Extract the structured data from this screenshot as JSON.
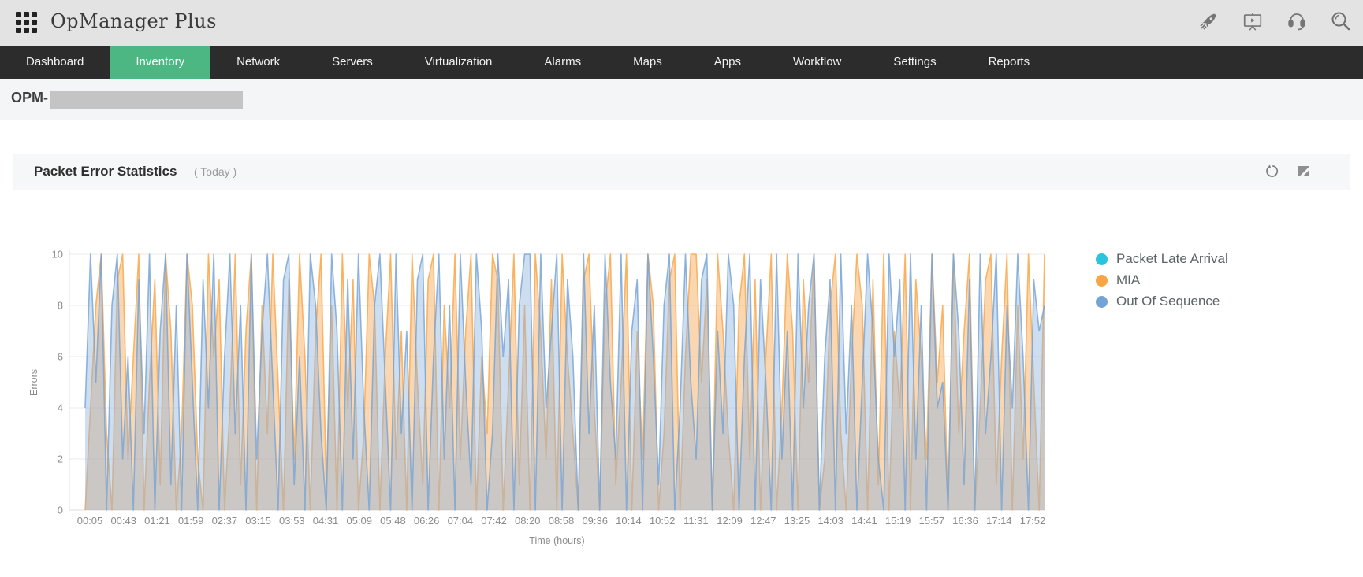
{
  "header": {
    "logo": "OpManager Plus",
    "icons": [
      {
        "name": "rocket-icon"
      },
      {
        "name": "video-demo-icon"
      },
      {
        "name": "support-headset-icon"
      },
      {
        "name": "search-icon"
      }
    ]
  },
  "nav": {
    "items": [
      {
        "label": "Dashboard",
        "active": false
      },
      {
        "label": "Inventory",
        "active": true
      },
      {
        "label": "Network",
        "active": false
      },
      {
        "label": "Servers",
        "active": false
      },
      {
        "label": "Virtualization",
        "active": false
      },
      {
        "label": "Alarms",
        "active": false
      },
      {
        "label": "Maps",
        "active": false
      },
      {
        "label": "Apps",
        "active": false
      },
      {
        "label": "Workflow",
        "active": false
      },
      {
        "label": "Settings",
        "active": false
      },
      {
        "label": "Reports",
        "active": false
      }
    ],
    "active_color": "#4cb783"
  },
  "breadcrumb": {
    "device_label": "OPM-",
    "redacted": true
  },
  "panel": {
    "title": "Packet Error Statistics",
    "subtitle": "( Today )",
    "icons": [
      {
        "name": "refresh-icon"
      },
      {
        "name": "expand-icon"
      }
    ]
  },
  "chart_data": {
    "type": "area",
    "title": "Packet Error Statistics",
    "xlabel": "Time (hours)",
    "ylabel": "Errors",
    "ylim": [
      0,
      10
    ],
    "yticks": [
      0,
      2,
      4,
      6,
      8,
      10
    ],
    "grid": "horizontal",
    "legend_position": "right",
    "xticklabels": [
      "00:05",
      "00:43",
      "01:21",
      "01:59",
      "02:37",
      "03:15",
      "03:53",
      "04:31",
      "05:09",
      "05:48",
      "06:26",
      "07:04",
      "07:42",
      "08:20",
      "08:58",
      "09:36",
      "10:14",
      "10:52",
      "11:31",
      "12:09",
      "12:47",
      "13:25",
      "14:03",
      "14:41",
      "15:19",
      "15:57",
      "16:36",
      "17:14",
      "17:52"
    ],
    "series": [
      {
        "name": "Packet Late Arrival",
        "color": "#29c5df",
        "fill": "#29c5df",
        "values": [
          0,
          0,
          0,
          0,
          0,
          0,
          0,
          0,
          0,
          0,
          0,
          0,
          0,
          0,
          0,
          0,
          0,
          0,
          0,
          0,
          0,
          0,
          0,
          0,
          0,
          0,
          0,
          0,
          0,
          0,
          0,
          0,
          0,
          0,
          0,
          0,
          0,
          0,
          0,
          0,
          0,
          0,
          0,
          0,
          0,
          0,
          0,
          0,
          0,
          0,
          0,
          0,
          0,
          0,
          0,
          0,
          0,
          0,
          0,
          0,
          0,
          0,
          0,
          0,
          0,
          0,
          0,
          0,
          0,
          0,
          0,
          0,
          0,
          0,
          0,
          0,
          0,
          0,
          0,
          0,
          0,
          0,
          0,
          0,
          0,
          0,
          0,
          0,
          0,
          0,
          0,
          0,
          0,
          0,
          0,
          0,
          0,
          0,
          0,
          0,
          0,
          0,
          0,
          0,
          0,
          0,
          0,
          0,
          0,
          0,
          0,
          0,
          0,
          0,
          0,
          0,
          0,
          0,
          0,
          0,
          0,
          0,
          0,
          0,
          0,
          0,
          0,
          0,
          0,
          0,
          0,
          0,
          0,
          0,
          0,
          0,
          0,
          0,
          0,
          0,
          0,
          0,
          0,
          0,
          0,
          0,
          0,
          0,
          0,
          0,
          0,
          0,
          0,
          0,
          0,
          0,
          0,
          0,
          0,
          0,
          0,
          0,
          0,
          0,
          0,
          0,
          0,
          0,
          0,
          0,
          0,
          0,
          0,
          0,
          0,
          0,
          0,
          0,
          0,
          0
        ]
      },
      {
        "name": "MIA",
        "color": "#f9a546",
        "fill": "#f4a44c",
        "values": [
          0,
          4,
          8,
          10,
          3,
          0,
          9,
          10,
          2,
          6,
          10,
          0,
          5,
          9,
          1,
          10,
          7,
          0,
          3,
          10,
          8,
          2,
          0,
          10,
          6,
          9,
          0,
          4,
          10,
          1,
          7,
          10,
          0,
          8,
          3,
          10,
          5,
          0,
          9,
          2,
          10,
          6,
          0,
          7,
          10,
          1,
          8,
          0,
          10,
          4,
          9,
          0,
          3,
          10,
          8,
          0,
          6,
          10,
          2,
          7,
          0,
          10,
          5,
          1,
          9,
          10,
          0,
          8,
          4,
          10,
          2,
          7,
          10,
          0,
          6,
          3,
          10,
          9,
          0,
          5,
          10,
          1,
          8,
          0,
          10,
          7,
          2,
          9,
          0,
          10,
          6,
          3,
          0,
          9,
          10,
          4,
          0,
          8,
          10,
          1,
          5,
          10,
          0,
          7,
          2,
          10,
          8,
          0,
          3,
          9,
          10,
          0,
          6,
          10,
          10,
          5,
          9,
          0,
          10,
          7,
          3,
          0,
          8,
          10,
          2,
          9,
          0,
          6,
          10,
          0,
          4,
          10,
          7,
          0,
          9,
          5,
          10,
          0,
          2,
          8,
          10,
          3,
          0,
          6,
          10,
          8,
          0,
          9,
          1,
          10,
          0,
          7,
          4,
          10,
          0,
          9,
          6,
          2,
          10,
          5,
          8,
          0,
          10,
          3,
          7,
          10,
          0,
          4,
          9,
          10,
          1,
          6,
          10,
          0,
          8,
          2,
          10,
          5,
          0,
          10
        ]
      },
      {
        "name": "Out Of Sequence",
        "color": "#74a3d6",
        "fill": "#8fb4de",
        "values": [
          4,
          10,
          5,
          10,
          0,
          8,
          10,
          2,
          6,
          0,
          9,
          3,
          10,
          0,
          7,
          10,
          1,
          8,
          0,
          10,
          5,
          0,
          9,
          4,
          10,
          0,
          6,
          10,
          3,
          8,
          0,
          10,
          2,
          7,
          10,
          5,
          0,
          9,
          10,
          1,
          6,
          0,
          10,
          8,
          3,
          0,
          10,
          7,
          0,
          9,
          2,
          10,
          4,
          0,
          8,
          10,
          5,
          0,
          10,
          3,
          7,
          0,
          9,
          10,
          0,
          6,
          10,
          2,
          8,
          0,
          10,
          5,
          1,
          10,
          7,
          0,
          3,
          10,
          6,
          9,
          0,
          8,
          10,
          10,
          0,
          10,
          4,
          7,
          10,
          0,
          9,
          6,
          0,
          10,
          3,
          8,
          0,
          10,
          5,
          2,
          10,
          0,
          7,
          9,
          0,
          10,
          6,
          1,
          8,
          10,
          0,
          4,
          10,
          5,
          2,
          9,
          10,
          0,
          7,
          3,
          10,
          8,
          0,
          6,
          10,
          0,
          9,
          5,
          0,
          10,
          2,
          7,
          0,
          10,
          4,
          8,
          10,
          0,
          6,
          9,
          0,
          10,
          3,
          8,
          0,
          5,
          10,
          7,
          2,
          0,
          10,
          6,
          9,
          0,
          10,
          2,
          8,
          0,
          10,
          4,
          5,
          0,
          10,
          7,
          1,
          9,
          0,
          10,
          3,
          6,
          10,
          0,
          8,
          4,
          10,
          6,
          0,
          9,
          7,
          8
        ]
      }
    ]
  }
}
